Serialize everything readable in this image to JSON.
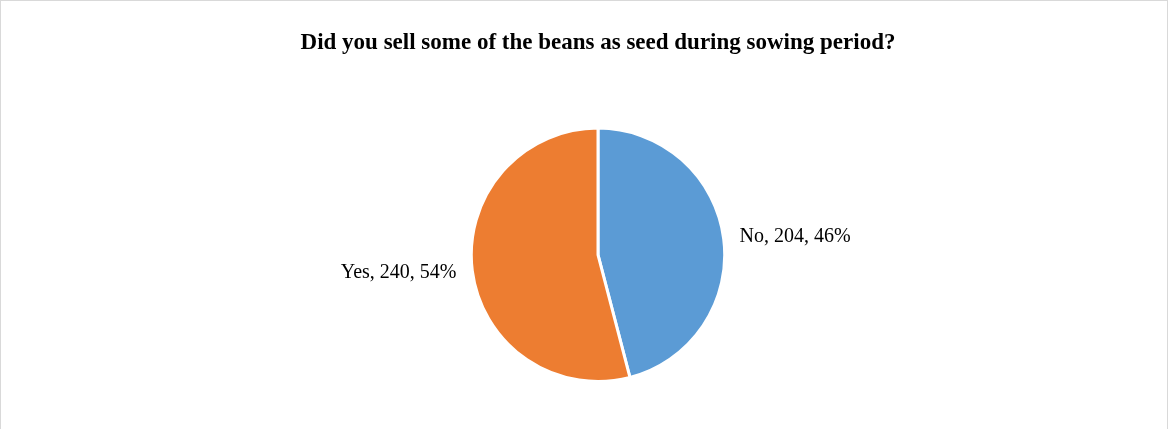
{
  "chart_data": {
    "type": "pie",
    "title": "Did you sell some of the beans as seed during sowing period?",
    "categories": [
      "No",
      "Yes"
    ],
    "values": [
      204,
      240
    ],
    "colors": [
      "#5b9bd5",
      "#ed7d31"
    ],
    "value_labels": [
      "204, 46%",
      "240, 54%"
    ],
    "legend": false
  }
}
